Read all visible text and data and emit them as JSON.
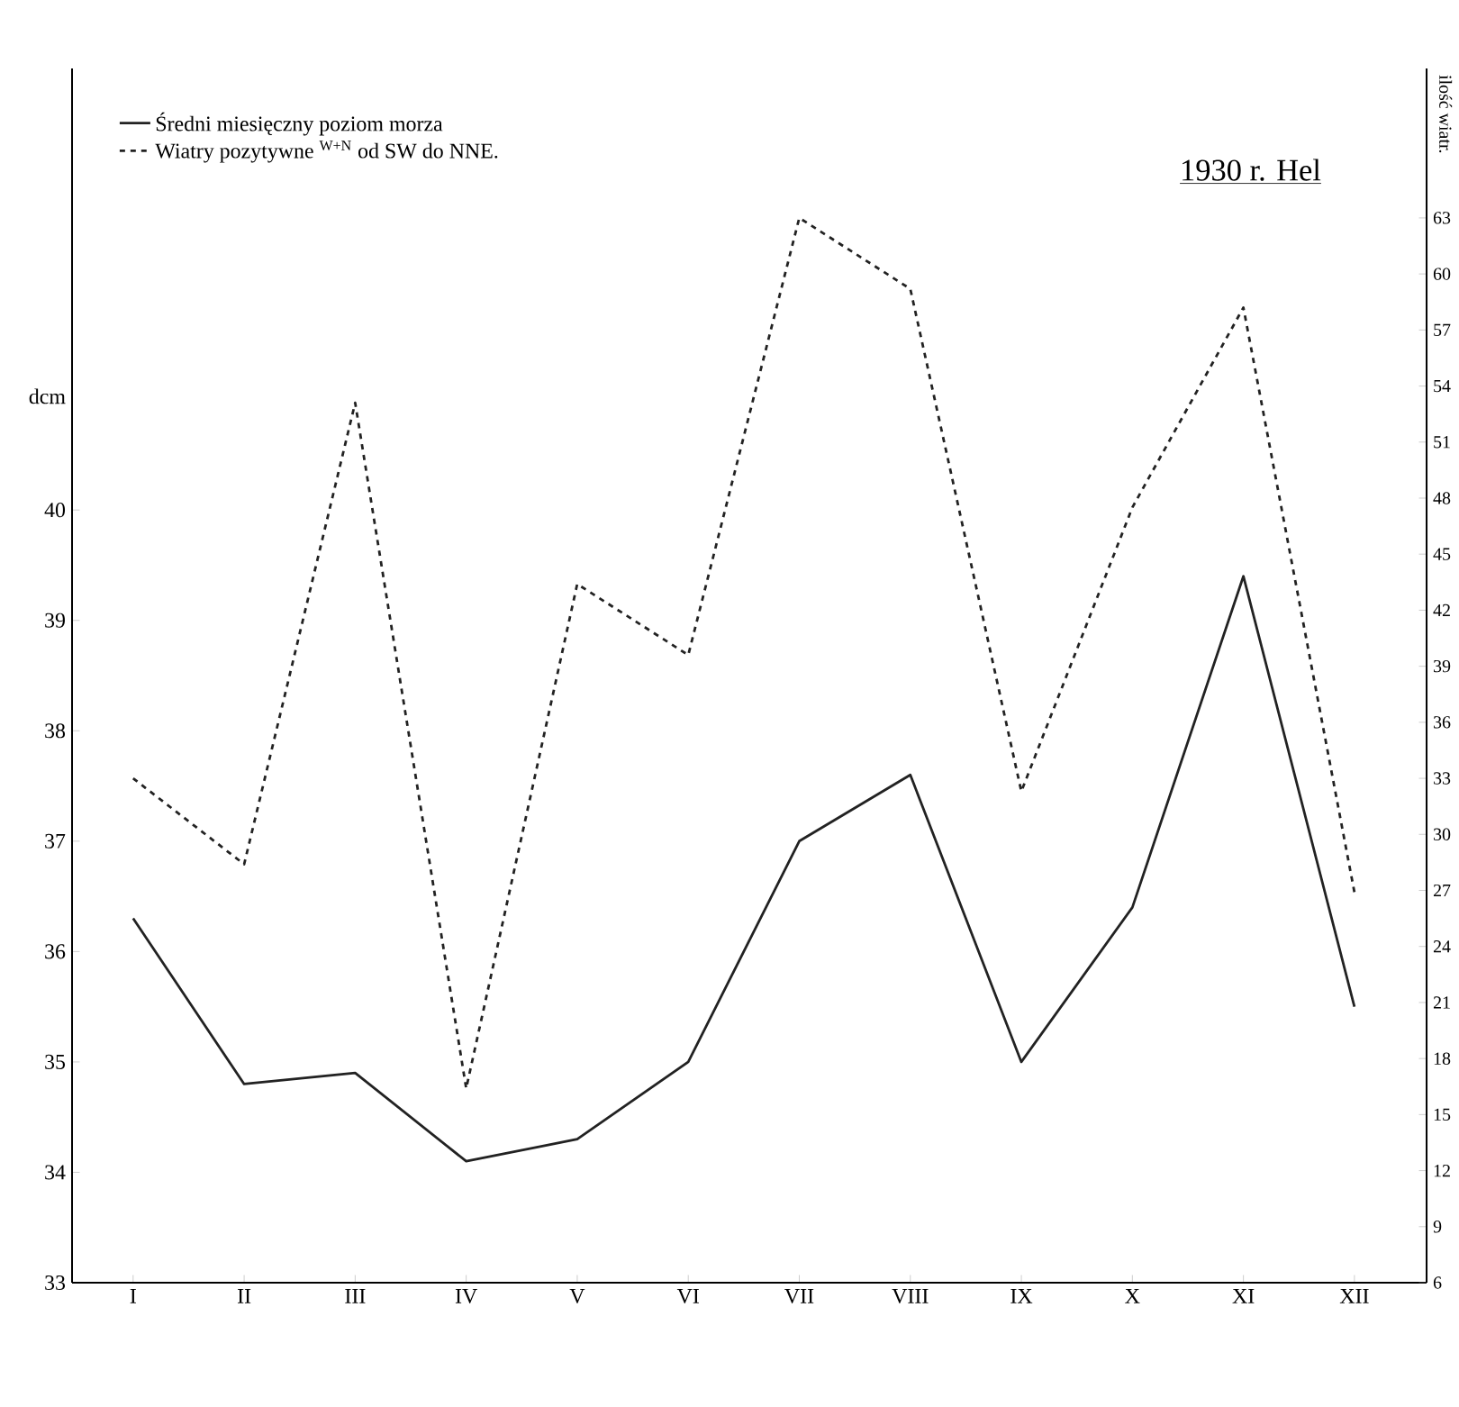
{
  "chart_data": {
    "type": "line",
    "title": "1930 r. Hel",
    "ylabel": "dcm",
    "y2label": "ilość wiatr.",
    "categories": [
      "I",
      "II",
      "III",
      "IV",
      "V",
      "VI",
      "VII",
      "VIII",
      "IX",
      "X",
      "XI",
      "XII"
    ],
    "series": [
      {
        "name": "Średni miesięczny poziom morza",
        "color": "#222222",
        "line_style": "solid",
        "values": [
          36.3,
          34.8,
          34.9,
          34.1,
          34.3,
          35.0,
          37.0,
          37.6,
          35.0,
          36.4,
          39.4,
          35.5
        ]
      },
      {
        "name": "Wiatry pozytywne $^{W+N}$ od SW do NNE.",
        "color": "#222222",
        "line_style": "dashed",
        "axis": "y2",
        "values": [
          33.0,
          28.4,
          53.1,
          16.4,
          43.4,
          39.6,
          63.0,
          59.2,
          32.3,
          47.5,
          58.2,
          26.9
        ]
      }
    ],
    "ylim": [
      33,
      44
    ],
    "yticks": [
      33,
      34,
      35,
      36,
      37,
      38,
      39,
      40
    ],
    "y2lim": [
      6,
      71
    ],
    "y2ticks": [
      6,
      9,
      12,
      15,
      18,
      21,
      24,
      27,
      30,
      33,
      36,
      39,
      42,
      45,
      48,
      51,
      54,
      57,
      60,
      63
    ],
    "legend": "top left",
    "grid": false,
    "marker": "none"
  }
}
